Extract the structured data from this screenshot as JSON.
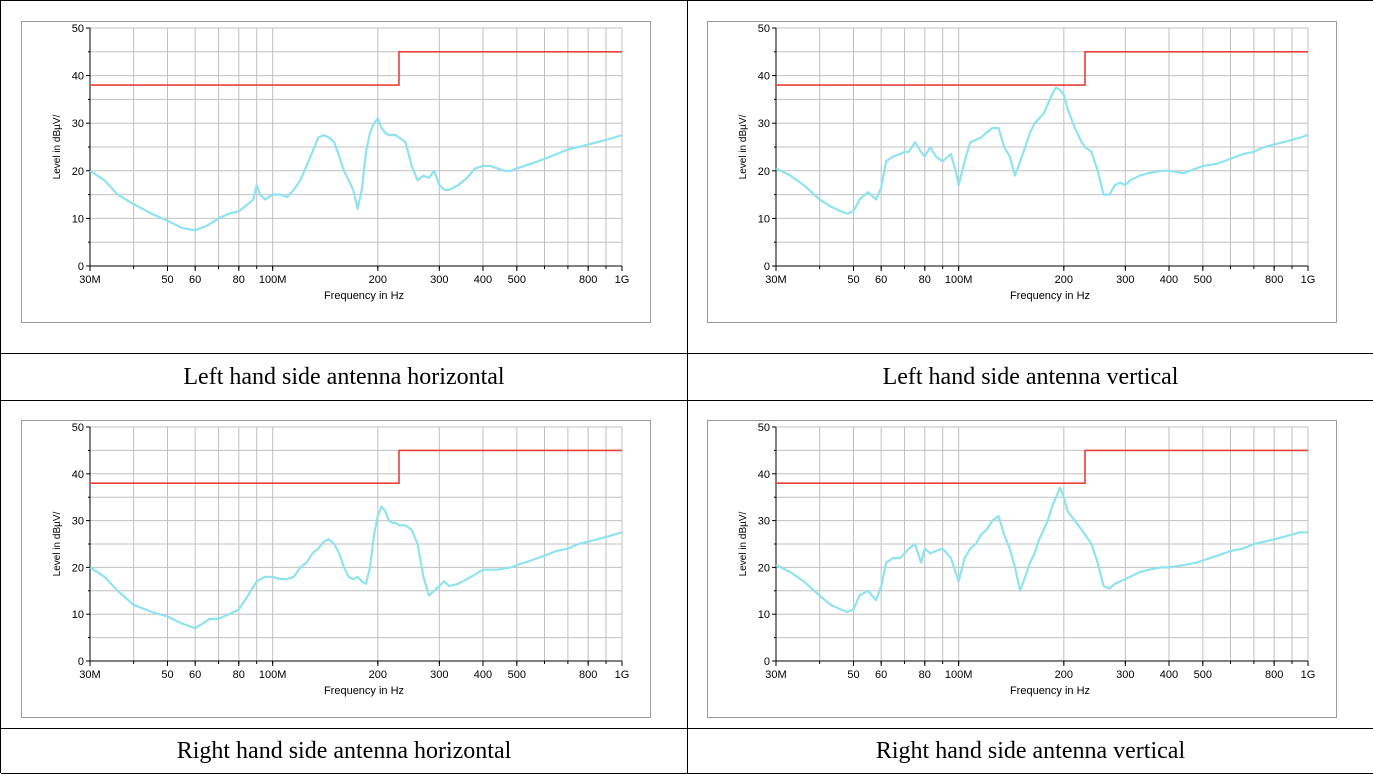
{
  "colors": {
    "limit": "#e8403a",
    "trace": "#8fe3ee",
    "grid": "#c0c0c0",
    "axis": "#000000"
  },
  "chart_data": [
    {
      "type": "line",
      "caption": "Left hand side antenna horizontal",
      "xlabel": "Frequency in Hz",
      "ylabel": "Level in dBµV/",
      "x_scale": "log",
      "xlim": [
        30000000,
        1000000000
      ],
      "ylim": [
        0,
        50
      ],
      "yticks": [
        "0",
        "10",
        "20",
        "30",
        "40",
        "50"
      ],
      "xticks": [
        {
          "value": 30000000,
          "label": "30M"
        },
        {
          "value": 50000000,
          "label": "50"
        },
        {
          "value": 60000000,
          "label": "60"
        },
        {
          "value": 80000000,
          "label": "80"
        },
        {
          "value": 100000000,
          "label": "100M"
        },
        {
          "value": 200000000,
          "label": "200"
        },
        {
          "value": 300000000,
          "label": "300"
        },
        {
          "value": 400000000,
          "label": "400"
        },
        {
          "value": 500000000,
          "label": "500"
        },
        {
          "value": 800000000,
          "label": "800"
        },
        {
          "value": 1000000000,
          "label": "1G"
        }
      ],
      "grid": true,
      "limit": {
        "x": [
          30000000,
          230000000,
          230000000,
          1000000000
        ],
        "y": [
          38,
          38,
          45,
          45
        ]
      },
      "series": [
        {
          "x": [
            30,
            33,
            36,
            40,
            45,
            50,
            55,
            60,
            65,
            70,
            75,
            80,
            85,
            88,
            90,
            92,
            95,
            100,
            105,
            110,
            115,
            120,
            125,
            130,
            135,
            140,
            145,
            150,
            155,
            160,
            165,
            170,
            175,
            180,
            185,
            190,
            195,
            200,
            205,
            210,
            215,
            220,
            225,
            230,
            240,
            250,
            260,
            270,
            280,
            290,
            300,
            310,
            320,
            330,
            340,
            360,
            380,
            400,
            420,
            440,
            460,
            480,
            500,
            550,
            600,
            650,
            700,
            750,
            800,
            850,
            900,
            950,
            1000
          ],
          "y": [
            20,
            18,
            15,
            13,
            11,
            9.5,
            8,
            7.5,
            8.5,
            10,
            11,
            11.5,
            13,
            14,
            17,
            15,
            14,
            15,
            15,
            14.5,
            16,
            18,
            21,
            24,
            27,
            27.5,
            27,
            26,
            23,
            20,
            18,
            16,
            12,
            16,
            24,
            28,
            30,
            31,
            29,
            28,
            27.5,
            27.5,
            27.5,
            27,
            26,
            21,
            18,
            19,
            18.5,
            20,
            17,
            16,
            16,
            16.5,
            17,
            18.5,
            20.5,
            21,
            21,
            20.5,
            20,
            20,
            20.5,
            21.5,
            22.5,
            23.5,
            24.5,
            25,
            25.5,
            26,
            26.5,
            27,
            27.5
          ]
        }
      ]
    },
    {
      "type": "line",
      "caption": "Left hand side antenna vertical",
      "xlabel": "Frequency in Hz",
      "ylabel": "Level in dBµV/",
      "x_scale": "log",
      "xlim": [
        30000000,
        1000000000
      ],
      "ylim": [
        0,
        50
      ],
      "yticks": [
        "0",
        "10",
        "20",
        "30",
        "40",
        "50"
      ],
      "xticks": [
        {
          "value": 30000000,
          "label": "30M"
        },
        {
          "value": 50000000,
          "label": "50"
        },
        {
          "value": 60000000,
          "label": "60"
        },
        {
          "value": 80000000,
          "label": "80"
        },
        {
          "value": 100000000,
          "label": "100M"
        },
        {
          "value": 200000000,
          "label": "200"
        },
        {
          "value": 300000000,
          "label": "300"
        },
        {
          "value": 400000000,
          "label": "400"
        },
        {
          "value": 500000000,
          "label": "500"
        },
        {
          "value": 800000000,
          "label": "800"
        },
        {
          "value": 1000000000,
          "label": "1G"
        }
      ],
      "grid": true,
      "limit": {
        "x": [
          30000000,
          230000000,
          230000000,
          1000000000
        ],
        "y": [
          38,
          38,
          45,
          45
        ]
      },
      "series": [
        {
          "x": [
            30,
            33,
            36,
            40,
            43,
            46,
            48,
            50,
            52,
            55,
            58,
            60,
            62,
            65,
            68,
            70,
            72,
            75,
            78,
            80,
            83,
            86,
            90,
            95,
            98,
            100,
            104,
            108,
            112,
            116,
            120,
            125,
            130,
            135,
            140,
            145,
            150,
            155,
            160,
            165,
            170,
            175,
            180,
            185,
            190,
            195,
            200,
            205,
            210,
            215,
            220,
            225,
            230,
            240,
            250,
            260,
            270,
            280,
            290,
            300,
            310,
            330,
            350,
            380,
            400,
            440,
            480,
            500,
            550,
            600,
            650,
            700,
            750,
            800,
            850,
            900,
            950,
            1000
          ],
          "y": [
            20.5,
            19,
            17,
            14,
            12.5,
            11.5,
            11,
            11.5,
            14,
            15.5,
            14,
            16.5,
            22,
            23,
            23.5,
            24,
            24,
            26,
            24,
            23,
            25,
            23,
            22,
            23.5,
            20,
            17,
            22,
            26,
            26.5,
            27,
            28,
            29,
            29,
            25,
            23,
            19,
            22,
            25,
            28,
            30,
            31,
            32,
            34,
            36,
            37.5,
            37,
            36,
            33,
            31,
            29,
            27.5,
            26,
            25,
            24,
            20,
            15,
            15,
            17,
            17.5,
            17,
            18,
            19,
            19.5,
            20,
            20,
            19.5,
            20.5,
            21,
            21.5,
            22.5,
            23.5,
            24,
            25,
            25.5,
            26,
            26.5,
            27,
            27.5
          ]
        }
      ]
    },
    {
      "type": "line",
      "caption": "Right hand side antenna horizontal",
      "xlabel": "Frequency in Hz",
      "ylabel": "Level in dBµV/",
      "x_scale": "log",
      "xlim": [
        30000000,
        1000000000
      ],
      "ylim": [
        0,
        50
      ],
      "yticks": [
        "0",
        "10",
        "20",
        "30",
        "40",
        "50"
      ],
      "xticks": [
        {
          "value": 30000000,
          "label": "30M"
        },
        {
          "value": 50000000,
          "label": "50"
        },
        {
          "value": 60000000,
          "label": "60"
        },
        {
          "value": 80000000,
          "label": "80"
        },
        {
          "value": 100000000,
          "label": "100M"
        },
        {
          "value": 200000000,
          "label": "200"
        },
        {
          "value": 300000000,
          "label": "300"
        },
        {
          "value": 400000000,
          "label": "400"
        },
        {
          "value": 500000000,
          "label": "500"
        },
        {
          "value": 800000000,
          "label": "800"
        },
        {
          "value": 1000000000,
          "label": "1G"
        }
      ],
      "grid": true,
      "limit": {
        "x": [
          30000000,
          230000000,
          230000000,
          1000000000
        ],
        "y": [
          38,
          38,
          45,
          45
        ]
      },
      "series": [
        {
          "x": [
            30,
            33,
            36,
            40,
            45,
            50,
            55,
            60,
            63,
            66,
            70,
            75,
            80,
            85,
            90,
            95,
            100,
            105,
            110,
            115,
            120,
            125,
            130,
            135,
            140,
            145,
            150,
            155,
            160,
            165,
            170,
            175,
            180,
            185,
            190,
            195,
            200,
            205,
            210,
            215,
            220,
            225,
            230,
            240,
            250,
            260,
            270,
            280,
            290,
            300,
            310,
            320,
            340,
            360,
            380,
            400,
            440,
            480,
            500,
            550,
            600,
            650,
            700,
            750,
            800,
            850,
            900,
            950,
            1000
          ],
          "y": [
            20,
            18,
            15,
            12,
            10.5,
            9.5,
            8,
            7,
            8,
            9,
            9,
            10,
            11,
            14,
            17,
            18,
            18,
            17.5,
            17.5,
            18,
            20,
            21,
            23,
            24,
            25.5,
            26,
            25,
            23,
            20,
            18,
            17.5,
            18,
            17,
            16.5,
            20,
            27,
            31,
            33,
            32,
            30,
            29.5,
            29.5,
            29,
            29,
            28,
            25,
            18,
            14,
            15,
            16,
            17,
            16,
            16.5,
            17.5,
            18.5,
            19.5,
            19.5,
            20,
            20.5,
            21.5,
            22.5,
            23.5,
            24,
            25,
            25.5,
            26,
            26.5,
            27,
            27.5
          ]
        }
      ]
    },
    {
      "type": "line",
      "caption": "Right hand side antenna vertical",
      "xlabel": "Frequency in Hz",
      "ylabel": "Level in dBµV/",
      "x_scale": "log",
      "xlim": [
        30000000,
        1000000000
      ],
      "ylim": [
        0,
        50
      ],
      "yticks": [
        "0",
        "10",
        "20",
        "30",
        "40",
        "50"
      ],
      "xticks": [
        {
          "value": 30000000,
          "label": "30M"
        },
        {
          "value": 50000000,
          "label": "50"
        },
        {
          "value": 60000000,
          "label": "60"
        },
        {
          "value": 80000000,
          "label": "80"
        },
        {
          "value": 100000000,
          "label": "100M"
        },
        {
          "value": 200000000,
          "label": "200"
        },
        {
          "value": 300000000,
          "label": "300"
        },
        {
          "value": 400000000,
          "label": "400"
        },
        {
          "value": 500000000,
          "label": "500"
        },
        {
          "value": 800000000,
          "label": "800"
        },
        {
          "value": 1000000000,
          "label": "1G"
        }
      ],
      "grid": true,
      "limit": {
        "x": [
          30000000,
          230000000,
          230000000,
          1000000000
        ],
        "y": [
          38,
          38,
          45,
          45
        ]
      },
      "series": [
        {
          "x": [
            30,
            33,
            36,
            40,
            43,
            46,
            48,
            50,
            52,
            55,
            58,
            60,
            62,
            65,
            68,
            70,
            72,
            75,
            78,
            80,
            83,
            86,
            90,
            95,
            98,
            100,
            104,
            108,
            112,
            116,
            120,
            125,
            130,
            135,
            140,
            145,
            150,
            155,
            160,
            165,
            170,
            175,
            180,
            185,
            190,
            195,
            200,
            205,
            210,
            215,
            220,
            225,
            230,
            240,
            250,
            260,
            270,
            280,
            290,
            300,
            310,
            330,
            350,
            380,
            400,
            440,
            480,
            500,
            550,
            600,
            650,
            700,
            750,
            800,
            850,
            900,
            950,
            1000
          ],
          "y": [
            20.5,
            19,
            17,
            14,
            12,
            11,
            10.5,
            11,
            14,
            15,
            13,
            16,
            21,
            22,
            22,
            23,
            24,
            25,
            21,
            24,
            23,
            23.5,
            24,
            22,
            19,
            17,
            22,
            24,
            25,
            27,
            28,
            30,
            31,
            27,
            24,
            20,
            15,
            18,
            21,
            23,
            26,
            28,
            30,
            33,
            35,
            37,
            35,
            32,
            31,
            30,
            29,
            28,
            27,
            25,
            21,
            16,
            15.5,
            16.5,
            17,
            17.5,
            18,
            19,
            19.5,
            20,
            20,
            20.5,
            21,
            21.5,
            22.5,
            23.5,
            24,
            25,
            25.5,
            26,
            26.5,
            27,
            27.5,
            27.5
          ]
        }
      ]
    }
  ]
}
